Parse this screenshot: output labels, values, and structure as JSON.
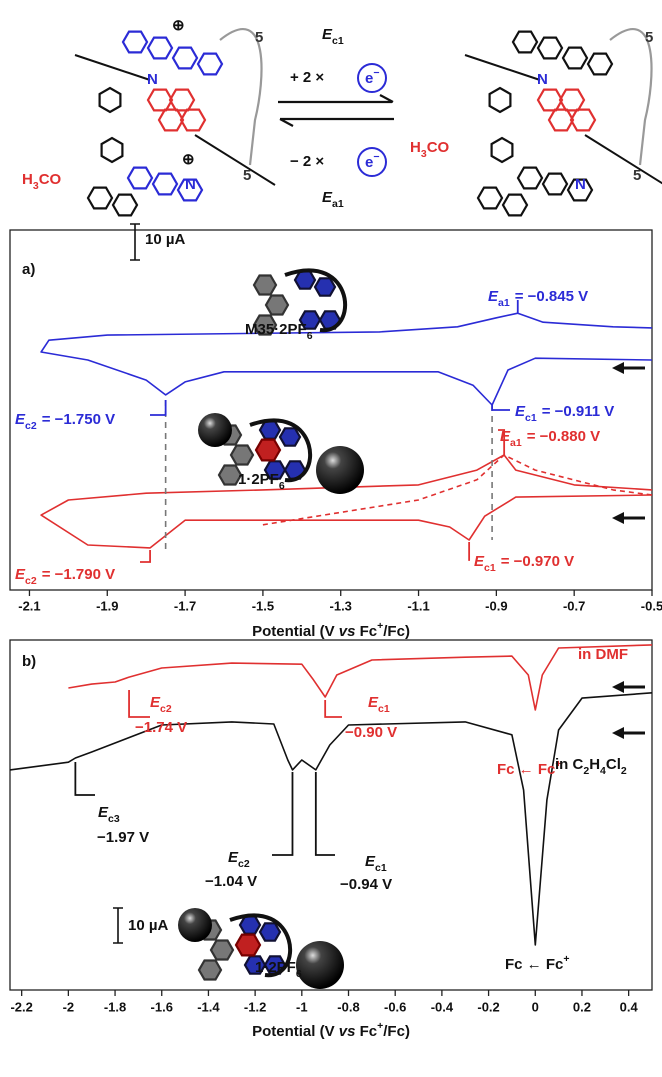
{
  "scheme": {
    "forward_label": {
      "symbol": "E",
      "sub": "c1"
    },
    "forward_electrons": "+ 2 ×",
    "reverse_electrons": "− 2 ×",
    "electron": [
      "e",
      "−"
    ],
    "reverse_label": {
      "symbol": "E",
      "sub": "a1"
    },
    "methoxy": [
      "H",
      "3",
      "CO"
    ],
    "nitrogen": "N",
    "chain_length": "5",
    "charge": "⊕"
  },
  "chart_data": [
    {
      "type": "line",
      "panel_label": "a)",
      "x_label": [
        "Potential (V ",
        "vs",
        " Fc",
        "+",
        "/Fc)"
      ],
      "xlim": [
        -2.15,
        -0.5
      ],
      "xticks": [
        -2.1,
        -1.9,
        -1.7,
        -1.5,
        -1.3,
        -1.1,
        -0.9,
        -0.7,
        -0.5
      ],
      "ylim": [
        0,
        100
      ],
      "scale_bar": {
        "value": 10,
        "label": "10 µA"
      },
      "series": [
        {
          "color": "#2b2bd6",
          "dash": false,
          "x": [
            -0.5,
            -0.8,
            -0.87,
            -0.911,
            -0.96,
            -1.05,
            -1.6,
            -1.7,
            -1.75,
            -1.8,
            -1.95,
            -2.07,
            -2.05,
            -1.9,
            -1.2,
            -1.0,
            -0.9,
            -0.845,
            -0.78,
            -0.6,
            -0.5
          ],
          "values": [
            63.9,
            64.4,
            61.1,
            51.4,
            56.9,
            60.6,
            60.6,
            57.8,
            54.2,
            58.3,
            63.9,
            66.1,
            69.4,
            70.8,
            71.7,
            73.1,
            75.6,
            76.9,
            74.4,
            73.1,
            72.8
          ]
        },
        {
          "color": "#e03030",
          "dash": false,
          "x": [
            -0.5,
            -0.85,
            -0.93,
            -0.97,
            -1.02,
            -1.1,
            -1.7,
            -1.79,
            -1.95,
            -2.07,
            -2.0,
            -1.8,
            -1.5,
            -1.1,
            -0.95,
            -0.88,
            -0.85,
            -0.7,
            -0.5
          ],
          "values": [
            26.4,
            25.8,
            20.5,
            13.9,
            17.5,
            19.4,
            19.4,
            11.7,
            12.5,
            20.8,
            25,
            26.9,
            27.8,
            29.2,
            33.3,
            37.5,
            33.3,
            29.2,
            27.8
          ]
        },
        {
          "color": "#e03030",
          "dash": true,
          "x": [
            -1.5,
            -1.1,
            -0.95,
            -0.88,
            -0.8,
            -0.6,
            -0.5
          ],
          "values": [
            18.1,
            25,
            30.6,
            37.5,
            33.3,
            27.8,
            26.4
          ]
        }
      ],
      "annotations": [
        {
          "symbol": "E",
          "sub": "a1",
          "text": "= −0.845 V",
          "value": -0.845,
          "color": "#2b2bd6"
        },
        {
          "symbol": "E",
          "sub": "c1",
          "text": "= −0.911 V",
          "value": -0.911,
          "color": "#2b2bd6"
        },
        {
          "symbol": "E",
          "sub": "c2",
          "text": "= −1.750 V",
          "value": -1.75,
          "color": "#2b2bd6"
        },
        {
          "symbol": "E",
          "sub": "a1",
          "text": "= −0.880 V",
          "value": -0.88,
          "color": "#e03030"
        },
        {
          "symbol": "E",
          "sub": "c1",
          "text": "= −0.970 V",
          "value": -0.97,
          "color": "#e03030"
        },
        {
          "symbol": "E",
          "sub": "c2",
          "text": "= −1.790 V",
          "value": -1.79,
          "color": "#e03030"
        }
      ],
      "labels": [],
      "insets": [
        {
          "label": [
            "M35·2PF",
            "6"
          ]
        },
        {
          "label": [
            "1·2PF",
            "6"
          ]
        }
      ]
    },
    {
      "type": "line",
      "panel_label": "b)",
      "x_label": [
        "Potential (V ",
        "vs",
        " Fc",
        "+",
        "/Fc)"
      ],
      "xlim": [
        -2.25,
        0.5
      ],
      "xticks": [
        -2.2,
        -2,
        -1.8,
        -1.6,
        -1.4,
        -1.2,
        -1,
        -0.8,
        -0.6,
        -0.4,
        -0.2,
        0,
        0.2,
        0.4
      ],
      "ylim": [
        0,
        100
      ],
      "scale_bar": {
        "value": 10,
        "label": "10 µA"
      },
      "series": [
        {
          "color": "#e03030",
          "dash": false,
          "x": [
            -2.0,
            -1.9,
            -1.8,
            -1.74,
            -1.6,
            -1.3,
            -1.0,
            -0.95,
            -0.9,
            -0.85,
            -0.7,
            -0.3,
            -0.1,
            -0.03,
            0.0,
            0.03,
            0.1,
            0.5
          ],
          "values": [
            86.3,
            87.4,
            88,
            89.4,
            92,
            93.4,
            93.1,
            88.6,
            83.7,
            90,
            94.3,
            95.1,
            95.4,
            90,
            80,
            90,
            97.7,
            98.6
          ]
        },
        {
          "color": "#111111",
          "dash": false,
          "x": [
            -2.25,
            -2.0,
            -1.97,
            -1.9,
            -1.6,
            -1.3,
            -1.12,
            -1.06,
            -1.04,
            -1.0,
            -0.94,
            -0.88,
            -0.8,
            -0.3,
            -0.1,
            -0.05,
            0.0,
            0.05,
            0.1,
            0.2,
            0.5
          ],
          "values": [
            62.9,
            65.1,
            66.3,
            68,
            75.7,
            76.6,
            76,
            65.7,
            62.9,
            65.7,
            62.9,
            70,
            75.7,
            76.6,
            72.9,
            57.1,
            12.9,
            54.3,
            74.3,
            83.4,
            84.9
          ]
        }
      ],
      "annotations": [
        {
          "symbol": "E",
          "sub": "c2",
          "text": "−1.74 V",
          "value": -1.74,
          "color": "#e03030"
        },
        {
          "symbol": "E",
          "sub": "c1",
          "text": "−0.90 V",
          "value": -0.9,
          "color": "#e03030"
        },
        {
          "symbol": "E",
          "sub": "c3",
          "text": "−1.97 V",
          "value": -1.97,
          "color": "#111111"
        },
        {
          "symbol": "E",
          "sub": "c2",
          "text": "−1.04 V",
          "value": -1.04,
          "color": "#111111"
        },
        {
          "symbol": "E",
          "sub": "c1",
          "text": "−0.94 V",
          "value": -0.94,
          "color": "#111111"
        }
      ],
      "labels": [
        {
          "parts": [
            "in DMF"
          ],
          "color": "#e03030"
        },
        {
          "parts": [
            "Fc ← Fc",
            "+"
          ],
          "color": "#e03030"
        },
        {
          "parts": [
            "in C",
            "2",
            "H",
            "4",
            "Cl",
            "2"
          ],
          "color": "#111111"
        },
        {
          "parts": [
            "Fc ← Fc",
            "+"
          ],
          "color": "#111111"
        }
      ],
      "insets": [
        {
          "label": [
            "1·2PF",
            "6"
          ]
        }
      ]
    }
  ]
}
